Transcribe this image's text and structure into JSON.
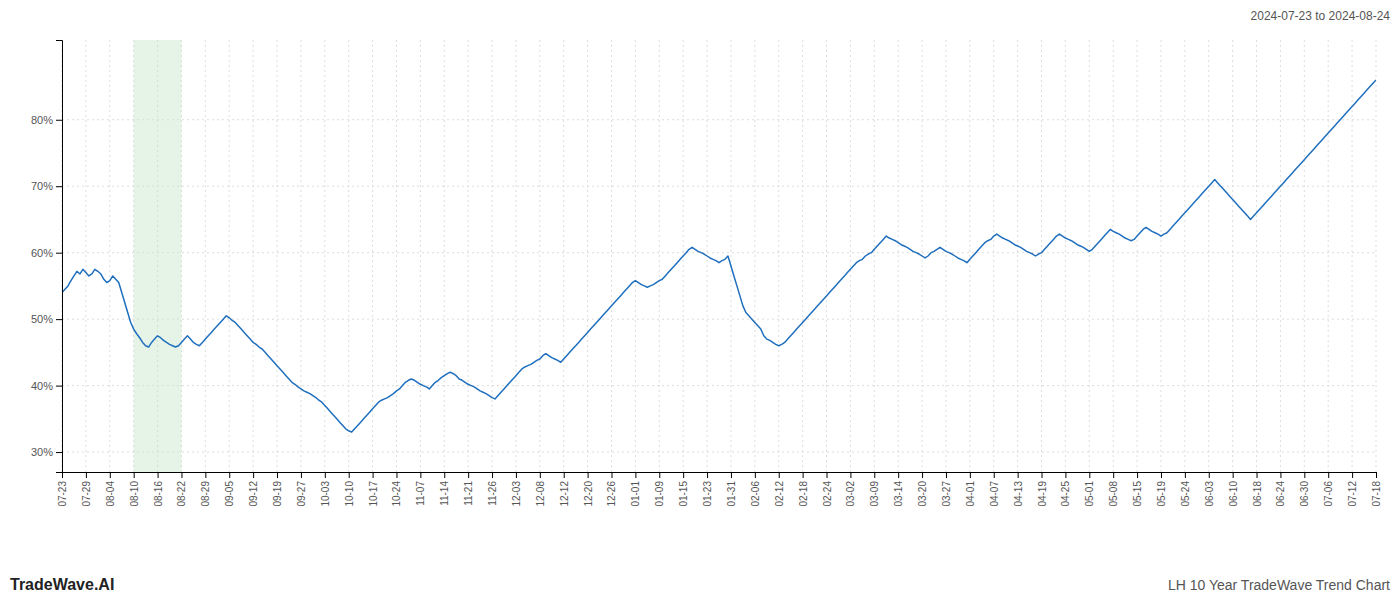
{
  "chart_data": {
    "type": "line",
    "title": "LH 10 Year TradeWave Trend Chart",
    "subtitle": "2024-07-23 to 2024-08-24",
    "annotations": [
      "TradeWave.AI"
    ],
    "color": "#1f6fbe",
    "grid": true,
    "highlight": {
      "start": "08-10",
      "end": "08-22",
      "color": "#c8e6c9"
    },
    "ylim": [
      27,
      92
    ],
    "yticks": [
      {
        "value": 30,
        "label": "30%"
      },
      {
        "value": 40,
        "label": "40%"
      },
      {
        "value": 50,
        "label": "50%"
      },
      {
        "value": 60,
        "label": "60%"
      },
      {
        "value": 70,
        "label": "70%"
      },
      {
        "value": 80,
        "label": "80%"
      }
    ],
    "categories": [
      "07-23",
      null,
      null,
      null,
      null,
      null,
      null,
      null,
      "07-29",
      null,
      null,
      null,
      null,
      null,
      null,
      null,
      "08-04",
      null,
      null,
      null,
      null,
      null,
      null,
      null,
      "08-10",
      null,
      null,
      null,
      null,
      null,
      null,
      null,
      "08-16",
      null,
      null,
      null,
      null,
      null,
      null,
      null,
      "08-22",
      null,
      null,
      null,
      null,
      null,
      null,
      null,
      "08-29",
      null,
      null,
      null,
      null,
      null,
      null,
      null,
      "09-05",
      null,
      null,
      null,
      null,
      null,
      null,
      null,
      "09-12",
      null,
      null,
      null,
      null,
      null,
      null,
      null,
      "09-19",
      null,
      null,
      null,
      null,
      null,
      null,
      null,
      "09-27",
      null,
      null,
      null,
      null,
      null,
      null,
      null,
      "10-03",
      null,
      null,
      null,
      null,
      null,
      null,
      null,
      "10-10",
      null,
      null,
      null,
      null,
      null,
      null,
      null,
      "10-17",
      null,
      null,
      null,
      null,
      null,
      null,
      null,
      "10-24",
      null,
      null,
      null,
      null,
      null,
      null,
      null,
      "11-07",
      null,
      null,
      null,
      null,
      null,
      null,
      null,
      "11-14",
      null,
      null,
      null,
      null,
      null,
      null,
      null,
      "11-21",
      null,
      null,
      null,
      null,
      null,
      null,
      null,
      "11-26",
      null,
      null,
      null,
      null,
      null,
      null,
      null,
      "12-03",
      null,
      null,
      null,
      null,
      null,
      null,
      null,
      "12-08",
      null,
      null,
      null,
      null,
      null,
      null,
      null,
      "12-12",
      null,
      null,
      null,
      null,
      null,
      null,
      null,
      "12-20",
      null,
      null,
      null,
      null,
      null,
      null,
      null,
      "12-26",
      null,
      null,
      null,
      null,
      null,
      null,
      null,
      "01-01",
      null,
      null,
      null,
      null,
      null,
      null,
      null,
      "01-09",
      null,
      null,
      null,
      null,
      null,
      null,
      null,
      "01-15",
      null,
      null,
      null,
      null,
      null,
      null,
      null,
      "01-23",
      null,
      null,
      null,
      null,
      null,
      null,
      null,
      "01-31",
      null,
      null,
      null,
      null,
      null,
      null,
      null,
      "02-06",
      null,
      null,
      null,
      null,
      null,
      null,
      null,
      "02-12",
      null,
      null,
      null,
      null,
      null,
      null,
      null,
      "02-18",
      null,
      null,
      null,
      null,
      null,
      null,
      null,
      "02-24",
      null,
      null,
      null,
      null,
      null,
      null,
      null,
      "03-02",
      null,
      null,
      null,
      null,
      null,
      null,
      null,
      "03-09",
      null,
      null,
      null,
      null,
      null,
      null,
      null,
      "03-14",
      null,
      null,
      null,
      null,
      null,
      null,
      null,
      "03-20",
      null,
      null,
      null,
      null,
      null,
      null,
      null,
      "03-27",
      null,
      null,
      null,
      null,
      null,
      null,
      null,
      "04-01",
      null,
      null,
      null,
      null,
      null,
      null,
      null,
      "04-07",
      null,
      null,
      null,
      null,
      null,
      null,
      null,
      "04-13",
      null,
      null,
      null,
      null,
      null,
      null,
      null,
      "04-19",
      null,
      null,
      null,
      null,
      null,
      null,
      null,
      "04-25",
      null,
      null,
      null,
      null,
      null,
      null,
      null,
      "05-01",
      null,
      null,
      null,
      null,
      null,
      null,
      null,
      "05-08",
      null,
      null,
      null,
      null,
      null,
      null,
      null,
      "05-15",
      null,
      null,
      null,
      null,
      null,
      null,
      null,
      "05-19",
      null,
      null,
      null,
      null,
      null,
      null,
      null,
      "05-24",
      null,
      null,
      null,
      null,
      null,
      null,
      null,
      "06-03",
      null,
      null,
      null,
      null,
      null,
      null,
      null,
      "06-10",
      null,
      null,
      null,
      null,
      null,
      null,
      null,
      "06-18",
      null,
      null,
      null,
      null,
      null,
      null,
      null,
      "06-24",
      null,
      null,
      null,
      null,
      null,
      null,
      null,
      "06-30",
      null,
      null,
      null,
      null,
      null,
      null,
      null,
      "07-06",
      null,
      null,
      null,
      null,
      null,
      null,
      null,
      "07-12",
      null,
      null,
      null,
      null,
      null,
      null,
      null,
      "07-18"
    ],
    "values": [
      54.0,
      54.5,
      55.0,
      55.8,
      56.5,
      57.2,
      56.8,
      57.5,
      57.0,
      56.5,
      56.8,
      57.5,
      57.2,
      56.8,
      56.0,
      55.5,
      55.8,
      56.5,
      56.0,
      55.5,
      54.0,
      52.5,
      51.0,
      49.5,
      48.5,
      47.8,
      47.2,
      46.5,
      46.0,
      45.8,
      46.5,
      47.0,
      47.5,
      47.2,
      46.8,
      46.5,
      46.2,
      46.0,
      45.8,
      46.0,
      46.5,
      47.0,
      47.5,
      47.0,
      46.5,
      46.2,
      46.0,
      46.5,
      47.0,
      47.5,
      48.0,
      48.5,
      49.0,
      49.5,
      50.0,
      50.5,
      50.2,
      49.8,
      49.5,
      49.0,
      48.5,
      48.0,
      47.5,
      47.0,
      46.5,
      46.2,
      45.8,
      45.5,
      45.0,
      44.5,
      44.0,
      43.5,
      43.0,
      42.5,
      42.0,
      41.5,
      41.0,
      40.5,
      40.2,
      39.8,
      39.5,
      39.2,
      39.0,
      38.8,
      38.5,
      38.2,
      37.8,
      37.5,
      37.0,
      36.5,
      36.0,
      35.5,
      35.0,
      34.5,
      34.0,
      33.5,
      33.2,
      33.0,
      33.5,
      34.0,
      34.5,
      35.0,
      35.5,
      36.0,
      36.5,
      37.0,
      37.5,
      37.8,
      38.0,
      38.2,
      38.5,
      38.8,
      39.2,
      39.5,
      40.0,
      40.5,
      40.8,
      41.0,
      40.8,
      40.5,
      40.2,
      40.0,
      39.8,
      39.5,
      40.0,
      40.5,
      40.8,
      41.2,
      41.5,
      41.8,
      42.0,
      41.8,
      41.5,
      41.0,
      40.8,
      40.5,
      40.2,
      40.0,
      39.8,
      39.5,
      39.2,
      39.0,
      38.8,
      38.5,
      38.2,
      38.0,
      38.5,
      39.0,
      39.5,
      40.0,
      40.5,
      41.0,
      41.5,
      42.0,
      42.5,
      42.8,
      43.0,
      43.2,
      43.5,
      43.8,
      44.0,
      44.5,
      44.8,
      44.5,
      44.2,
      44.0,
      43.8,
      43.5,
      44.0,
      44.5,
      45.0,
      45.5,
      46.0,
      46.5,
      47.0,
      47.5,
      48.0,
      48.5,
      49.0,
      49.5,
      50.0,
      50.5,
      51.0,
      51.5,
      52.0,
      52.5,
      53.0,
      53.5,
      54.0,
      54.5,
      55.0,
      55.5,
      55.8,
      55.5,
      55.2,
      55.0,
      54.8,
      55.0,
      55.2,
      55.5,
      55.8,
      56.0,
      56.5,
      57.0,
      57.5,
      58.0,
      58.5,
      59.0,
      59.5,
      60.0,
      60.5,
      60.8,
      60.5,
      60.2,
      60.0,
      59.8,
      59.5,
      59.2,
      59.0,
      58.8,
      58.5,
      58.8,
      59.0,
      59.5,
      58.0,
      56.5,
      55.0,
      53.5,
      52.0,
      51.0,
      50.5,
      50.0,
      49.5,
      49.0,
      48.5,
      47.5,
      47.0,
      46.8,
      46.5,
      46.2,
      46.0,
      46.2,
      46.5,
      47.0,
      47.5,
      48.0,
      48.5,
      49.0,
      49.5,
      50.0,
      50.5,
      51.0,
      51.5,
      52.0,
      52.5,
      53.0,
      53.5,
      54.0,
      54.5,
      55.0,
      55.5,
      56.0,
      56.5,
      57.0,
      57.5,
      58.0,
      58.5,
      58.8,
      59.0,
      59.5,
      59.8,
      60.0,
      60.5,
      61.0,
      61.5,
      62.0,
      62.5,
      62.2,
      62.0,
      61.8,
      61.5,
      61.2,
      61.0,
      60.8,
      60.5,
      60.2,
      60.0,
      59.8,
      59.5,
      59.2,
      59.5,
      60.0,
      60.2,
      60.5,
      60.8,
      60.5,
      60.2,
      60.0,
      59.8,
      59.5,
      59.2,
      59.0,
      58.8,
      58.5,
      59.0,
      59.5,
      60.0,
      60.5,
      61.0,
      61.5,
      61.8,
      62.0,
      62.5,
      62.8,
      62.5,
      62.2,
      62.0,
      61.8,
      61.5,
      61.2,
      61.0,
      60.8,
      60.5,
      60.2,
      60.0,
      59.8,
      59.5,
      59.8,
      60.0,
      60.5,
      61.0,
      61.5,
      62.0,
      62.5,
      62.8,
      62.5,
      62.2,
      62.0,
      61.8,
      61.5,
      61.2,
      61.0,
      60.8,
      60.5,
      60.2,
      60.5,
      61.0,
      61.5,
      62.0,
      62.5,
      63.0,
      63.5,
      63.2,
      63.0,
      62.8,
      62.5,
      62.2,
      62.0,
      61.8,
      62.0,
      62.5,
      63.0,
      63.5,
      63.8,
      63.5,
      63.2,
      63.0,
      62.8,
      62.5,
      62.8,
      63.0,
      63.5,
      64.0,
      64.5,
      65.0,
      65.5,
      66.0,
      66.5,
      67.0,
      67.5,
      68.0,
      68.5,
      69.0,
      69.5,
      70.0,
      70.5,
      71.0,
      70.5,
      70.0,
      69.5,
      69.0,
      68.5,
      68.0,
      67.5,
      67.0,
      66.5,
      66.0,
      65.5,
      65.0,
      65.5,
      66.0,
      66.5,
      67.0,
      67.5,
      68.0,
      68.5,
      69.0,
      69.5,
      70.0,
      70.5,
      71.0,
      71.5,
      72.0,
      72.5,
      73.0,
      73.5,
      74.0,
      74.5,
      75.0,
      75.5,
      76.0,
      76.5,
      77.0,
      77.5,
      78.0,
      78.5,
      79.0,
      79.5,
      80.0,
      80.5,
      81.0,
      81.5,
      82.0,
      82.5,
      83.0,
      83.5,
      84.0,
      84.5,
      85.0,
      85.5,
      86.0
    ]
  }
}
